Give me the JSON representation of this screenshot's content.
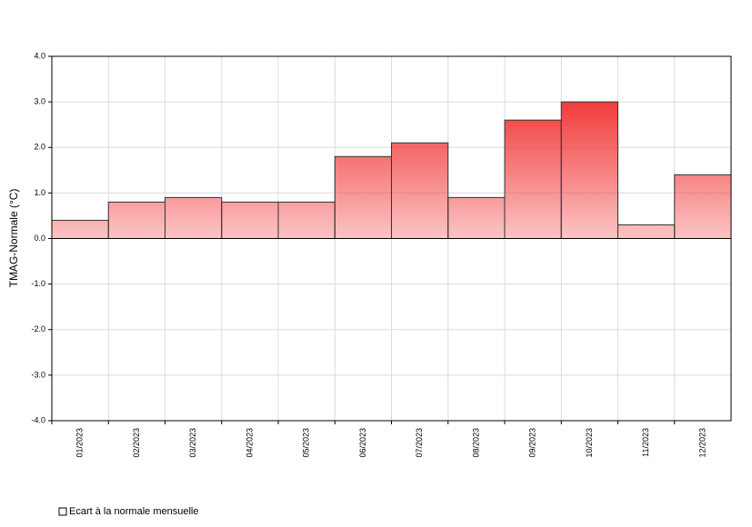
{
  "chart_data": {
    "type": "bar",
    "y_label": "TMAG-Normale (°C)",
    "categories": [
      "01/2023",
      "02/2023",
      "03/2023",
      "04/2023",
      "05/2023",
      "06/2023",
      "07/2023",
      "08/2023",
      "09/2023",
      "10/2023",
      "11/2023",
      "12/2023"
    ],
    "series": [
      {
        "name": "Ecart à la normale mensuelle",
        "color": "#f23b3b",
        "values": [
          0.4,
          0.8,
          0.9,
          0.8,
          0.8,
          1.8,
          2.1,
          0.9,
          2.6,
          3.0,
          0.3,
          1.4
        ]
      }
    ],
    "ylim": [
      -4,
      4
    ],
    "yticks": [
      {
        "value": -4,
        "label": "-4.0"
      },
      {
        "value": -3,
        "label": "-3.0"
      },
      {
        "value": -2,
        "label": "-2.0"
      },
      {
        "value": -1,
        "label": "-1.0"
      },
      {
        "value": 0,
        "label": "0.0"
      },
      {
        "value": 1,
        "label": "1.0"
      },
      {
        "value": 2,
        "label": "2.0"
      },
      {
        "value": 3,
        "label": "3.0"
      },
      {
        "value": 4,
        "label": "4.0"
      }
    ],
    "grid": true
  }
}
